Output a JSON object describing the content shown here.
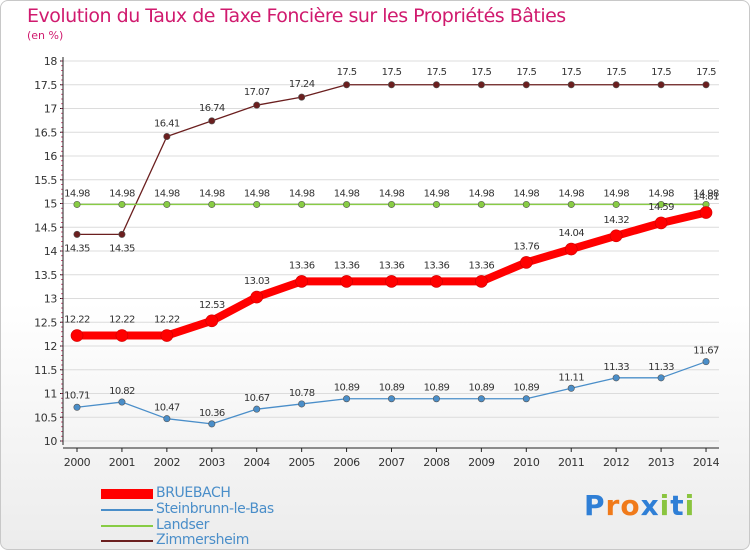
{
  "title": "Evolution du Taux de Taxe Foncière sur les Propriétés Bâties",
  "unit": "(en %)",
  "logo": "Proxiti",
  "colors": {
    "BRUEBACH": "#ff0000",
    "Steinbrunn-le-Bas": "#4a8ec9",
    "Landser": "#88cc44",
    "Zimmersheim": "#6b1f1f",
    "axis": "#222222",
    "grid": "#dcdcdc",
    "title": "#d01a6e"
  },
  "chart_data": {
    "type": "line",
    "title": "Evolution du Taux de Taxe Foncière sur les Propriétés Bâties",
    "xlabel": "",
    "ylabel": "(en %)",
    "ylim": [
      10,
      18
    ],
    "yticks": [
      10,
      10.5,
      11,
      11.5,
      12,
      12.5,
      13,
      13.5,
      14,
      14.5,
      15,
      15.5,
      16,
      16.5,
      17,
      17.5,
      18
    ],
    "ytick_labels": [
      "10",
      "10.5",
      "11",
      "11.5",
      "12",
      "12.5",
      "13",
      "13.5",
      "14",
      "14.5",
      "15",
      "15.5",
      "16",
      "16.5",
      "17",
      "17.5",
      "18"
    ],
    "x": [
      "2000",
      "2001",
      "2002",
      "2003",
      "2004",
      "2005",
      "2006",
      "2007",
      "2008",
      "2009",
      "2010",
      "2011",
      "2012",
      "2013",
      "2014"
    ],
    "legend_position": "bottom-left",
    "series": [
      {
        "name": "Zimmersheim",
        "values": [
          14.35,
          14.35,
          16.41,
          16.74,
          17.07,
          17.24,
          17.5,
          17.5,
          17.5,
          17.5,
          17.5,
          17.5,
          17.5,
          17.5,
          17.5
        ],
        "labels": [
          "14.35",
          "14.35",
          "16.41",
          "16.74",
          "17.07",
          "17.24",
          "17.5",
          "17.5",
          "17.5",
          "17.5",
          "17.5",
          "17.5",
          "17.5",
          "17.5",
          "17.5"
        ]
      },
      {
        "name": "Landser",
        "values": [
          14.98,
          14.98,
          14.98,
          14.98,
          14.98,
          14.98,
          14.98,
          14.98,
          14.98,
          14.98,
          14.98,
          14.98,
          14.98,
          14.98,
          14.98
        ],
        "labels": [
          "14.98",
          "14.98",
          "14.98",
          "14.98",
          "14.98",
          "14.98",
          "14.98",
          "14.98",
          "14.98",
          "14.98",
          "14.98",
          "14.98",
          "14.98",
          "14.98",
          "14.98"
        ]
      },
      {
        "name": "Steinbrunn-le-Bas",
        "values": [
          10.71,
          10.82,
          10.47,
          10.36,
          10.67,
          10.78,
          10.89,
          10.89,
          10.89,
          10.89,
          10.89,
          11.11,
          11.33,
          11.33,
          11.67
        ],
        "labels": [
          "10.71",
          "10.82",
          "10.47",
          "10.36",
          "10.67",
          "10.78",
          "10.89",
          "10.89",
          "10.89",
          "10.89",
          "10.89",
          "11.11",
          "11.33",
          "11.33",
          "11.67"
        ]
      },
      {
        "name": "BRUEBACH",
        "values": [
          12.22,
          12.22,
          12.22,
          12.53,
          13.03,
          13.36,
          13.36,
          13.36,
          13.36,
          13.36,
          13.76,
          14.04,
          14.32,
          14.59,
          14.81
        ],
        "labels": [
          "12.22",
          "12.22",
          "12.22",
          "12.53",
          "13.03",
          "13.36",
          "13.36",
          "13.36",
          "13.36",
          "13.36",
          "13.76",
          "14.04",
          "14.32",
          "14.59",
          "14.81"
        ]
      }
    ]
  },
  "legend": [
    "BRUEBACH",
    "Steinbrunn-le-Bas",
    "Landser",
    "Zimmersheim"
  ]
}
